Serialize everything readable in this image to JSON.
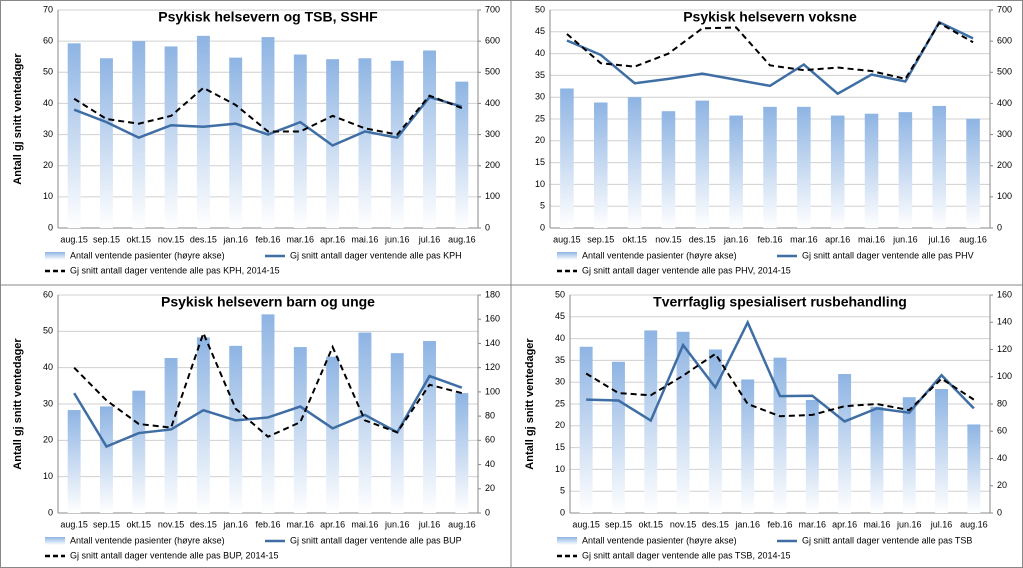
{
  "chart_data": [
    {
      "type": "combo",
      "title": "Psykisk helsevern og TSB, SSHF",
      "ylabel": "Antall gj snitt ventedager",
      "categories": [
        "aug.15",
        "sep.15",
        "okt.15",
        "nov.15",
        "des.15",
        "jan.16",
        "feb.16",
        "mar.16",
        "apr.16",
        "mai.16",
        "jun.16",
        "jul.16",
        "aug.16"
      ],
      "ylim": [
        0,
        70
      ],
      "yticks": [
        0,
        10,
        20,
        30,
        40,
        50,
        60,
        70
      ],
      "y2lim": [
        0,
        700
      ],
      "y2ticks": [
        0,
        100,
        200,
        300,
        400,
        500,
        600,
        700
      ],
      "grid": true,
      "series": [
        {
          "name": "Antall ventende pasienter (høyre akse)",
          "type": "bar",
          "axis": "y2",
          "color": "#8eb4e3",
          "values": [
            593,
            545,
            600,
            583,
            617,
            547,
            613,
            557,
            542,
            545,
            537,
            570,
            470
          ]
        },
        {
          "name": "Gj snitt antall dager ventende alle pas KPH",
          "type": "line",
          "line_style": "solid",
          "color": "#3f6ea5",
          "values": [
            38,
            34,
            29,
            33,
            32.5,
            33.5,
            30,
            34,
            26.5,
            31,
            29,
            42,
            39
          ]
        },
        {
          "name": "Gj snitt antall dager ventende alle pas KPH, 2014-15",
          "type": "line",
          "line_style": "dashed",
          "color": "#000000",
          "values": [
            41.5,
            35,
            33.5,
            36,
            45,
            39.5,
            31,
            31,
            36,
            32,
            30,
            42.5,
            38.5
          ]
        }
      ]
    },
    {
      "type": "combo",
      "title": "Psykisk helsevern voksne",
      "categories": [
        "aug.15",
        "sep.15",
        "okt.15",
        "nov.15",
        "des.15",
        "jan.16",
        "feb.16",
        "mar.16",
        "apr.16",
        "mai.16",
        "jun.16",
        "jul.16",
        "aug.16"
      ],
      "ylim": [
        0,
        50
      ],
      "yticks": [
        0,
        5,
        10,
        15,
        20,
        25,
        30,
        35,
        40,
        45,
        50
      ],
      "y2lim": [
        0,
        700
      ],
      "y2ticks": [
        0,
        100,
        200,
        300,
        400,
        500,
        600,
        700
      ],
      "grid": true,
      "series": [
        {
          "name": "Antall ventende pasienter (høyre akse)",
          "type": "bar",
          "axis": "y2",
          "color": "#8eb4e3",
          "values": [
            448,
            403,
            420,
            375,
            409,
            361,
            389,
            389,
            361,
            367,
            372,
            392,
            351
          ]
        },
        {
          "name": "Gj snitt antall dager ventende alle pas PHV",
          "type": "line",
          "line_style": "solid",
          "color": "#3f6ea5",
          "values": [
            43,
            39.7,
            33.2,
            34.2,
            35.4,
            34,
            32.6,
            37.5,
            30.8,
            35.2,
            33.6,
            47.2,
            43.5
          ]
        },
        {
          "name": "Gj snitt antall dager ventende alle pas PHV, 2014-15",
          "type": "line",
          "line_style": "dashed",
          "color": "#000000",
          "values": [
            44.5,
            37.8,
            37,
            40,
            45.8,
            46,
            37.3,
            36.2,
            36.8,
            36,
            34.2,
            47,
            42.6
          ]
        }
      ]
    },
    {
      "type": "combo",
      "title": "Psykisk helsevern barn og unge",
      "ylabel": "Antall gj snitt ventedager",
      "categories": [
        "aug.15",
        "sep.15",
        "okt.15",
        "nov.15",
        "des.15",
        "jan.16",
        "feb.16",
        "mar.16",
        "apr.16",
        "mai.16",
        "jun.16",
        "jul.16",
        "aug.16"
      ],
      "ylim": [
        0,
        60
      ],
      "yticks": [
        0,
        10,
        20,
        30,
        40,
        50,
        60
      ],
      "y2lim": [
        0,
        180
      ],
      "y2ticks": [
        0,
        20,
        40,
        60,
        80,
        100,
        120,
        140,
        160,
        180
      ],
      "grid": true,
      "series": [
        {
          "name": "Antall ventende pasienter (høyre akse)",
          "type": "bar",
          "axis": "y2",
          "color": "#8eb4e3",
          "values": [
            85,
            88,
            101,
            128,
            145,
            138,
            164,
            137,
            129,
            149,
            132,
            142,
            99
          ]
        },
        {
          "name": "Gj snitt antall dager ventende alle pas BUP",
          "type": "line",
          "line_style": "solid",
          "color": "#3f6ea5",
          "values": [
            33,
            18.3,
            22,
            23,
            28.3,
            25.5,
            26.3,
            29.3,
            23.3,
            27,
            22.2,
            37.7,
            34.5
          ]
        },
        {
          "name": "Gj snitt antall dager ventende alle pas BUP, 2014-15",
          "type": "line",
          "line_style": "dashed",
          "color": "#000000",
          "values": [
            40,
            31,
            24.5,
            23.5,
            49.5,
            28.7,
            21,
            25,
            45.7,
            25.5,
            22.2,
            35.3,
            33
          ]
        }
      ]
    },
    {
      "type": "combo",
      "title": "Tverrfaglig spesialisert rusbehandling",
      "ylabel": "Antall gj snitt ventedager",
      "categories": [
        "aug.15",
        "sep.15",
        "okt.15",
        "nov.15",
        "des.15",
        "jan.16",
        "feb.16",
        "mar.16",
        "apr.16",
        "mai.16",
        "jun.16",
        "jul.16",
        "aug.16"
      ],
      "ylim": [
        0,
        50
      ],
      "yticks": [
        0,
        5,
        10,
        15,
        20,
        25,
        30,
        35,
        40,
        45,
        50
      ],
      "y2lim": [
        0,
        160
      ],
      "y2ticks": [
        0,
        20,
        40,
        60,
        80,
        100,
        120,
        140,
        160
      ],
      "grid": true,
      "series": [
        {
          "name": "Antall ventende pasienter (høyre akse)",
          "type": "bar",
          "axis": "y2",
          "color": "#8eb4e3",
          "values": [
            122,
            111,
            134,
            133,
            120,
            98,
            114,
            83,
            102,
            78,
            85,
            91,
            65
          ]
        },
        {
          "name": "Gj snitt antall dager ventende alle pas TSB",
          "type": "line",
          "line_style": "solid",
          "color": "#3f6ea5",
          "values": [
            26,
            25.8,
            21.2,
            38.5,
            28.8,
            43.7,
            26.8,
            26.9,
            21,
            24,
            23,
            31.6,
            24
          ]
        },
        {
          "name": "Gj snitt antall dager ventende alle pas TSB, 2014-15",
          "type": "line",
          "line_style": "dashed",
          "color": "#000000",
          "values": [
            32,
            27.5,
            27,
            31.5,
            36.5,
            25,
            22.2,
            22.5,
            24.5,
            25,
            23.6,
            30.8,
            26
          ]
        }
      ]
    }
  ]
}
